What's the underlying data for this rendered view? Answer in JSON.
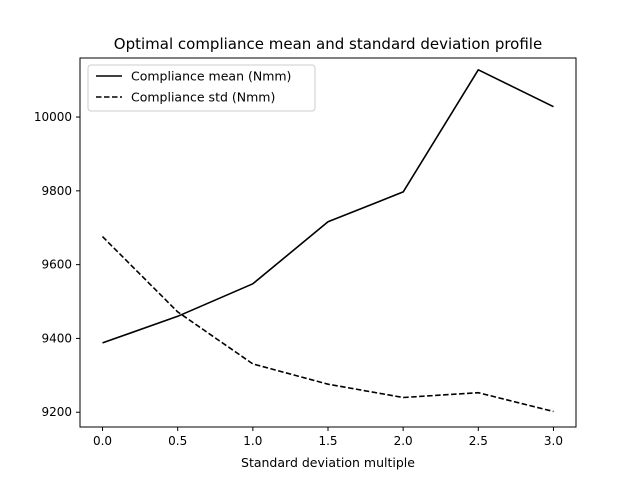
{
  "chart_data": {
    "type": "line",
    "title": "Optimal compliance mean and standard deviation profile",
    "xlabel": "Standard deviation multiple",
    "ylabel": "",
    "x": [
      0.0,
      0.5,
      1.0,
      1.5,
      2.0,
      2.5,
      3.0
    ],
    "xlim": [
      -0.15,
      3.15
    ],
    "ylim": [
      9160,
      10160
    ],
    "xticks": [
      "0.0",
      "0.5",
      "1.0",
      "1.5",
      "2.0",
      "2.5",
      "3.0"
    ],
    "yticks": [
      "9200",
      "9400",
      "9600",
      "9800",
      "10000"
    ],
    "grid": false,
    "legend_position": "top-left",
    "series": [
      {
        "name": "Compliance mean (Nmm)",
        "style": "solid",
        "color": "#000000",
        "values": [
          9388,
          9460,
          9548,
          9716,
          9797,
          10128,
          10028
        ]
      },
      {
        "name": "Compliance std (Nmm)",
        "style": "dashed",
        "color": "#000000",
        "values": [
          9676,
          9472,
          9331,
          9276,
          9240,
          9253,
          9202
        ]
      }
    ]
  }
}
